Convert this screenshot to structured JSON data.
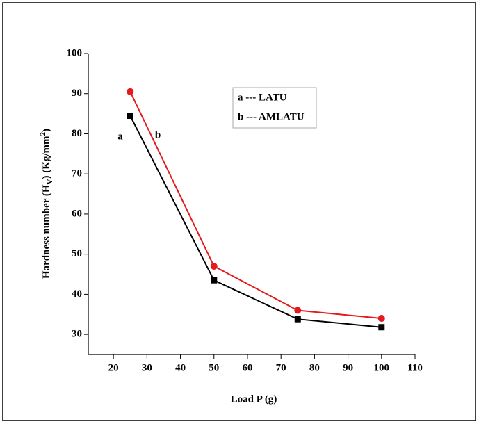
{
  "chart_data": {
    "type": "line",
    "x_label": "Load P (g)",
    "y_label": [
      "Hardness number (H",
      "V",
      ") (Kg/mm",
      "2",
      ")"
    ],
    "x": [
      25,
      50,
      75,
      100
    ],
    "series": [
      {
        "name": "LATU",
        "color": "#000000",
        "marker": "square",
        "values": [
          84.5,
          43.5,
          33.8,
          31.8
        ]
      },
      {
        "name": "AMLATU",
        "color": "#e41a1c",
        "marker": "circle",
        "values": [
          90.5,
          47,
          36,
          34
        ]
      }
    ],
    "legend": [
      "a --- LATU",
      "b --- AMLATU"
    ],
    "annotations": [
      "a",
      "b"
    ],
    "xlim": [
      12.5,
      110
    ],
    "xticks": [
      20,
      30,
      40,
      50,
      60,
      70,
      80,
      90,
      100,
      110
    ],
    "ylim": [
      25,
      100
    ],
    "yticks": [
      30,
      40,
      50,
      60,
      70,
      80,
      90,
      100
    ]
  }
}
